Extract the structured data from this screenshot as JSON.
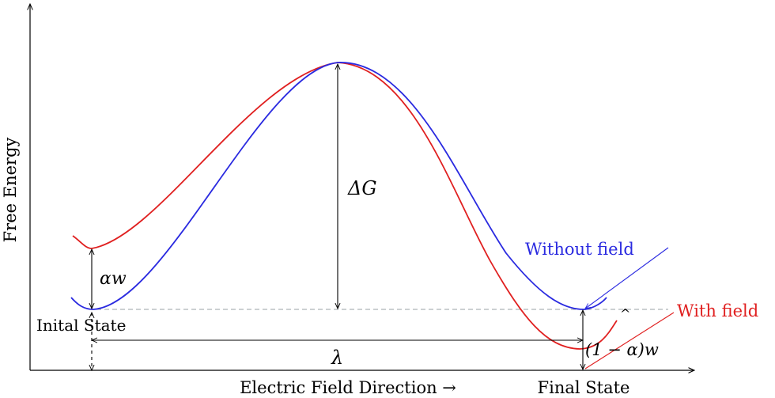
{
  "axes": {
    "y_label": "Free Energy",
    "x_label": "Electric Field Direction →"
  },
  "states": {
    "initial": "Inital State",
    "final": "Final State"
  },
  "annotations": {
    "delta_g": "ΔG",
    "alpha_w": "αw",
    "one_minus_alpha_w": "(1 − α)w",
    "lambda": "λ",
    "caret": "^"
  },
  "legend": {
    "without_field": "Without field",
    "with_field": "With field"
  },
  "colors": {
    "without_field": "#2a2ae0",
    "with_field": "#e02020",
    "axis": "#000000",
    "baseline": "#9aa0a6"
  }
}
